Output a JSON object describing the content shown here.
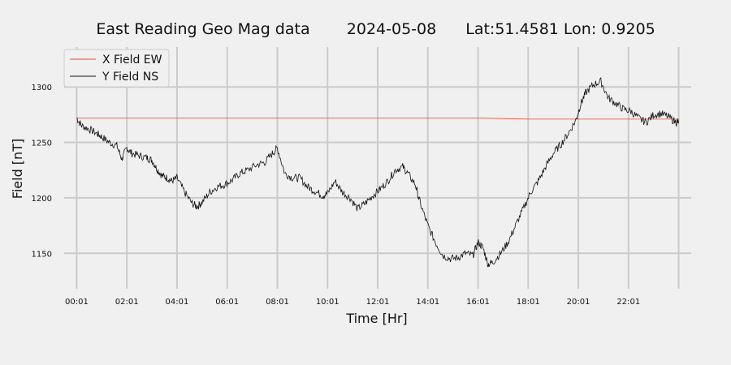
{
  "chart_data": {
    "type": "line",
    "title_parts": [
      "East Reading Geo Mag data",
      "2024-05-08",
      "Lat:51.4581  Lon: 0.9205"
    ],
    "xlabel": "Time  [Hr]",
    "ylabel": "Field  [nT]",
    "xlim": [
      -0.5,
      24.5
    ],
    "ylim": [
      1118,
      1336
    ],
    "x_ticks": [
      "00:01",
      "02:01",
      "04:01",
      "06:01",
      "08:01",
      "10:01",
      "12:01",
      "14:01",
      "16:01",
      "18:01",
      "20:01",
      "22:01"
    ],
    "y_ticks": [
      1150,
      1200,
      1250,
      1300
    ],
    "grid": true,
    "legend_position": "top-left",
    "series": [
      {
        "name": "X Field EW",
        "color": "#e8432e",
        "x": [
          0,
          2,
          4,
          6,
          8,
          10,
          12,
          14,
          16,
          18,
          20,
          22,
          24
        ],
        "y": [
          1272,
          1272,
          1272,
          1272,
          1272,
          1272,
          1272,
          1272,
          1272,
          1271,
          1271,
          1271,
          1271
        ]
      },
      {
        "name": "Y Field NS",
        "color": "#111111",
        "x": [
          0,
          0.2,
          0.5,
          0.8,
          1.0,
          1.3,
          1.6,
          1.8,
          2.0,
          2.2,
          2.5,
          2.8,
          3.0,
          3.2,
          3.4,
          3.6,
          3.8,
          4.0,
          4.3,
          4.6,
          4.8,
          5.0,
          5.3,
          5.6,
          5.9,
          6.2,
          6.5,
          6.8,
          7.2,
          7.5,
          7.8,
          8.0,
          8.3,
          8.6,
          8.9,
          9.2,
          9.5,
          9.8,
          10.0,
          10.3,
          10.6,
          10.9,
          11.2,
          11.5,
          11.8,
          12.1,
          12.4,
          12.7,
          13.0,
          13.2,
          13.5,
          13.7,
          14.0,
          14.3,
          14.6,
          14.9,
          15.2,
          15.5,
          15.8,
          16.0,
          16.2,
          16.4,
          16.6,
          16.9,
          17.2,
          17.5,
          17.8,
          18.1,
          18.4,
          18.7,
          19.0,
          19.3,
          19.6,
          19.9,
          20.1,
          20.3,
          20.6,
          20.9,
          21.2,
          21.5,
          21.8,
          22.1,
          22.4,
          22.7,
          23.0,
          23.3,
          23.6,
          23.9,
          24.0
        ],
        "y": [
          1272,
          1265,
          1262,
          1258,
          1255,
          1250,
          1247,
          1235,
          1245,
          1240,
          1238,
          1236,
          1234,
          1226,
          1220,
          1218,
          1215,
          1218,
          1205,
          1195,
          1192,
          1196,
          1205,
          1210,
          1212,
          1216,
          1222,
          1225,
          1230,
          1232,
          1240,
          1245,
          1222,
          1218,
          1218,
          1210,
          1206,
          1202,
          1204,
          1215,
          1205,
          1200,
          1190,
          1195,
          1202,
          1208,
          1215,
          1225,
          1228,
          1222,
          1212,
          1195,
          1175,
          1160,
          1148,
          1145,
          1146,
          1150,
          1148,
          1160,
          1155,
          1140,
          1142,
          1150,
          1160,
          1175,
          1190,
          1205,
          1215,
          1228,
          1240,
          1248,
          1258,
          1270,
          1285,
          1295,
          1302,
          1305,
          1290,
          1285,
          1280,
          1278,
          1272,
          1268,
          1275,
          1276,
          1273,
          1268,
          1269
        ]
      }
    ]
  }
}
